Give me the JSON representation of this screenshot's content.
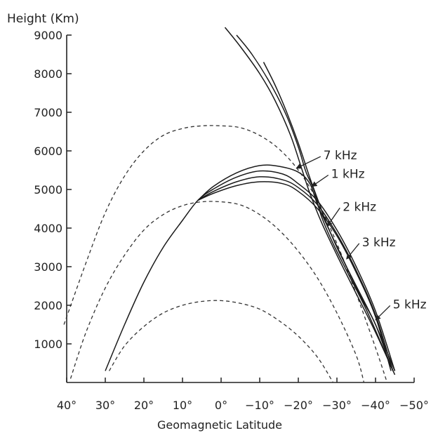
{
  "chart_data": {
    "type": "line",
    "ylabel": "Height  (Km)",
    "xlabel": "Geomagnetic  Latitude",
    "xlim": [
      40,
      -50
    ],
    "ylim": [
      0,
      9000
    ],
    "x_ticks": [
      "40°",
      "30°",
      "20°",
      "10°",
      "0°",
      "−10°",
      "−20°",
      "−30°",
      "−40°",
      "−50°"
    ],
    "x_tick_values": [
      40,
      30,
      20,
      10,
      0,
      -10,
      -20,
      -30,
      -40,
      -50
    ],
    "y_ticks": [
      "1000",
      "2000",
      "3000",
      "4000",
      "5000",
      "6000",
      "7000",
      "8000",
      "9000"
    ],
    "y_tick_values": [
      1000,
      2000,
      3000,
      4000,
      5000,
      6000,
      7000,
      8000,
      9000
    ],
    "field_lines": [
      {
        "style": "dashed",
        "points": [
          [
            40.7,
            1500
          ],
          [
            35,
            3100
          ],
          [
            30,
            4400
          ],
          [
            25,
            5350
          ],
          [
            20,
            6000
          ],
          [
            15,
            6400
          ],
          [
            10,
            6580
          ],
          [
            5,
            6650
          ],
          [
            0,
            6650
          ],
          [
            -5,
            6600
          ],
          [
            -10,
            6400
          ],
          [
            -15,
            6050
          ],
          [
            -20,
            5500
          ],
          [
            -25,
            4700
          ],
          [
            -30,
            3600
          ],
          [
            -35,
            2300
          ],
          [
            -40,
            900
          ],
          [
            -43,
            0
          ]
        ]
      },
      {
        "style": "dashed",
        "points": [
          [
            39,
            100
          ],
          [
            35,
            1300
          ],
          [
            30,
            2450
          ],
          [
            25,
            3300
          ],
          [
            20,
            3950
          ],
          [
            15,
            4350
          ],
          [
            10,
            4580
          ],
          [
            5,
            4680
          ],
          [
            0,
            4680
          ],
          [
            -5,
            4600
          ],
          [
            -10,
            4350
          ],
          [
            -15,
            3950
          ],
          [
            -20,
            3400
          ],
          [
            -25,
            2700
          ],
          [
            -30,
            1800
          ],
          [
            -35,
            700
          ],
          [
            -37,
            0
          ]
        ]
      },
      {
        "style": "dashed",
        "points": [
          [
            29,
            300
          ],
          [
            25,
            950
          ],
          [
            20,
            1450
          ],
          [
            15,
            1800
          ],
          [
            10,
            2000
          ],
          [
            5,
            2100
          ],
          [
            0,
            2120
          ],
          [
            -5,
            2050
          ],
          [
            -10,
            1900
          ],
          [
            -15,
            1600
          ],
          [
            -20,
            1200
          ],
          [
            -25,
            650
          ],
          [
            -29,
            0
          ]
        ]
      }
    ],
    "ray_paths": [
      {
        "points": [
          [
            30,
            300
          ],
          [
            25,
            1500
          ],
          [
            20,
            2600
          ],
          [
            15,
            3500
          ],
          [
            10,
            4200
          ],
          [
            6,
            4720
          ],
          [
            2,
            5010
          ],
          [
            -4,
            5320
          ],
          [
            -10,
            5480
          ],
          [
            -16,
            5400
          ],
          [
            -20,
            5150
          ],
          [
            -25,
            4700
          ],
          [
            -30,
            3950
          ],
          [
            -35,
            3000
          ],
          [
            -40,
            1850
          ],
          [
            -45,
            300
          ]
        ]
      },
      {
        "points": [
          [
            6,
            4720
          ],
          [
            2,
            4950
          ],
          [
            -4,
            5200
          ],
          [
            -10,
            5330
          ],
          [
            -16,
            5250
          ],
          [
            -20,
            5050
          ],
          [
            -25,
            4600
          ],
          [
            -30,
            3850
          ],
          [
            -35,
            2900
          ],
          [
            -40,
            1750
          ],
          [
            -44.5,
            300
          ]
        ]
      },
      {
        "points": [
          [
            6,
            4720
          ],
          [
            2,
            4900
          ],
          [
            -4,
            5100
          ],
          [
            -10,
            5200
          ],
          [
            -16,
            5150
          ],
          [
            -20,
            4950
          ],
          [
            -25,
            4500
          ],
          [
            -30,
            3800
          ],
          [
            -35,
            2850
          ],
          [
            -40,
            1700
          ],
          [
            -44,
            300
          ]
        ]
      },
      {
        "points": [
          [
            6,
            4720
          ],
          [
            2,
            5080
          ],
          [
            -4,
            5430
          ],
          [
            -10,
            5620
          ],
          [
            -15,
            5600
          ],
          [
            -20,
            5450
          ],
          [
            -23,
            5150
          ],
          [
            -25,
            4600
          ],
          [
            -28,
            3950
          ],
          [
            -32,
            3100
          ],
          [
            -36,
            2250
          ],
          [
            -40,
            1500
          ],
          [
            -44,
            400
          ]
        ]
      },
      {
        "points": [
          [
            -1,
            9200
          ],
          [
            -5,
            8700
          ],
          [
            -10,
            8000
          ],
          [
            -14,
            7300
          ],
          [
            -18,
            6400
          ],
          [
            -21,
            5500
          ],
          [
            -23,
            4900
          ],
          [
            -26,
            4150
          ],
          [
            -30,
            3300
          ],
          [
            -35,
            2300
          ],
          [
            -40,
            1300
          ],
          [
            -45,
            200
          ]
        ]
      },
      {
        "points": [
          [
            -4,
            9000
          ],
          [
            -8,
            8500
          ],
          [
            -13,
            7700
          ],
          [
            -17,
            6900
          ],
          [
            -20,
            6100
          ],
          [
            -22,
            5450
          ],
          [
            -24,
            5000
          ],
          [
            -26,
            4300
          ],
          [
            -29,
            3600
          ],
          [
            -33,
            2800
          ],
          [
            -38,
            1800
          ],
          [
            -44.5,
            300
          ]
        ]
      },
      {
        "points": [
          [
            -11,
            8300
          ],
          [
            -14,
            7700
          ],
          [
            -17,
            7000
          ],
          [
            -20,
            6200
          ],
          [
            -23,
            5300
          ],
          [
            -25,
            4750
          ],
          [
            -27,
            4200
          ],
          [
            -30,
            3500
          ],
          [
            -35,
            2500
          ],
          [
            -40,
            1500
          ],
          [
            -45,
            300
          ]
        ]
      }
    ],
    "annotations": [
      {
        "text": "7  kHz",
        "x": -26.5,
        "y": 5780,
        "arrow_to": [
          -19.5,
          5550
        ]
      },
      {
        "text": "1  kHz",
        "x": -28.5,
        "y": 5300,
        "arrow_to": [
          -23.5,
          5080
        ]
      },
      {
        "text": "2  kHz",
        "x": -31.5,
        "y": 4450,
        "arrow_to": [
          -27.5,
          4050
        ]
      },
      {
        "text": "3  kHz",
        "x": -36.5,
        "y": 3530,
        "arrow_to": [
          -32.5,
          3200
        ]
      },
      {
        "text": "5  kHz",
        "x": -44.5,
        "y": 1920,
        "arrow_to": [
          -40,
          1620
        ]
      }
    ]
  }
}
